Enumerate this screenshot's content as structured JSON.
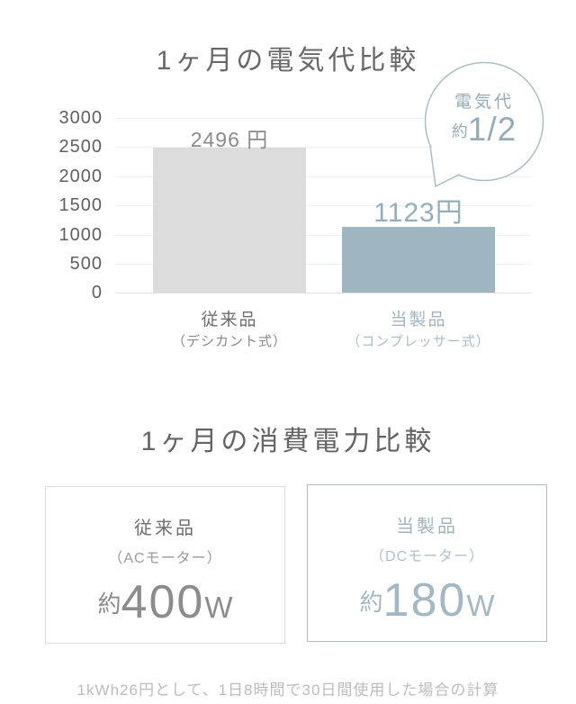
{
  "chart_data": {
    "type": "bar",
    "title": "1ヶ月の電気代比較",
    "categories": [
      "従来品",
      "当製品"
    ],
    "category_subs": [
      "（デシカント式）",
      "（コンプレッサー式）"
    ],
    "values": [
      2496,
      1123
    ],
    "value_labels": [
      "2496 円",
      "1123円"
    ],
    "bar_colors": [
      "#dcdcdc",
      "#9db6c0"
    ],
    "ylim": [
      0,
      3000
    ],
    "yticks": [
      "3000",
      "2500",
      "2000",
      "1500",
      "1000",
      "500",
      "0"
    ],
    "grid": true,
    "legend": "none",
    "annotation_bubble": {
      "label": "電気代",
      "approx": "約",
      "fraction": "1/2"
    }
  },
  "power_section": {
    "title": "1ヶ月の消費電力比較",
    "boxes": [
      {
        "name": "従来品",
        "motor": "（ACモーター）",
        "approx": "約",
        "watts": "400",
        "unit": "W"
      },
      {
        "name": "当製品",
        "motor": "（DCモーター）",
        "approx": "約",
        "watts": "180",
        "unit": "W"
      }
    ],
    "footnote": "1kWh26円として、1日8時間で30日間使用した場合の計算"
  },
  "colors": {
    "accent_teal_bar": "#9db6c0",
    "teal_text": "#92afbc",
    "gray_bar": "#dcdcdc",
    "gray_text": "#8a8a8a",
    "title_text": "#686868",
    "bubble_border": "#a8bfc9",
    "gridline": "#f1f0f1",
    "footnote_text": "#bcbcbc"
  }
}
